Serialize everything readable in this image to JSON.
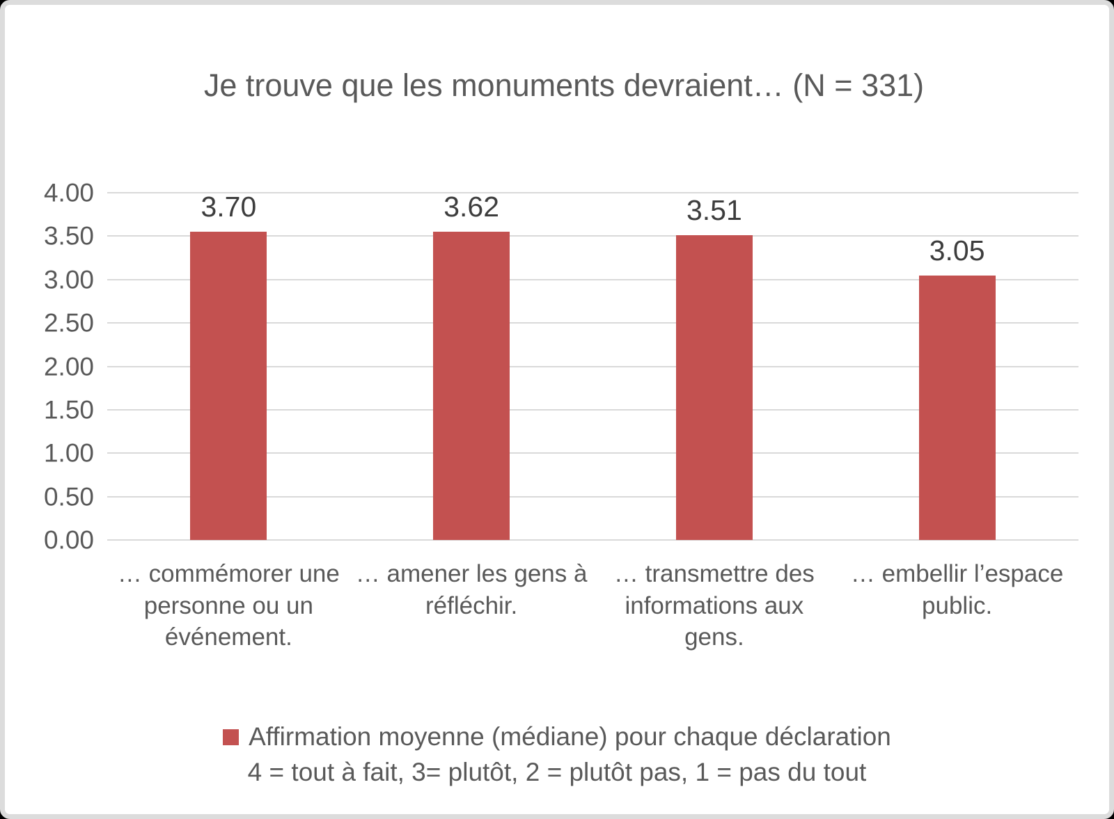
{
  "frame": {
    "background": "#ffffff",
    "border_color": "#dcdcdc",
    "outside_color": "#000000"
  },
  "chart_data": {
    "type": "bar",
    "title": "Je trouve que les monuments devraient… (N = 331)",
    "categories": [
      "… commémorer une personne ou un événement.",
      "… amener les gens à réfléchir.",
      "… transmettre des informations aux gens.",
      "… embellir l’espace public."
    ],
    "values": [
      3.7,
      3.62,
      3.51,
      3.05
    ],
    "value_labels": [
      "3.70",
      "3.62",
      "3.51",
      "3.05"
    ],
    "xlabel": "",
    "ylabel": "",
    "ylim": [
      0,
      4
    ],
    "yticks": [
      "4.00",
      "3.50",
      "3.00",
      "2.50",
      "2.00",
      "1.50",
      "1.00",
      "0.50",
      "0.00"
    ],
    "grid": true,
    "gridline_color": "#d9d9d9",
    "bar_color": "#c35150",
    "title_color": "#595959",
    "axis_text_color": "#595959",
    "value_label_color": "#3d3d3d",
    "legend_position": "bottom",
    "legend": {
      "swatch_color": "#c35150",
      "label": "Affirmation moyenne (médiane) pour chaque déclaration",
      "sublabel": "4 = tout à fait, 3= plutôt, 2 = plutôt pas, 1 = pas du tout"
    }
  }
}
